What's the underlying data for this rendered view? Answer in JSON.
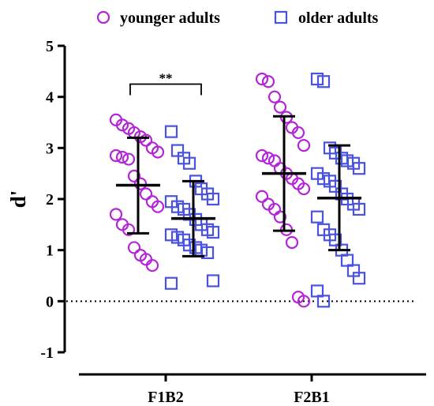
{
  "chart_data": {
    "type": "scatter",
    "title": "",
    "xlabel": "",
    "ylabel": "d'",
    "ylim": [
      -1,
      5
    ],
    "yticks": [
      -1,
      0,
      1,
      2,
      3,
      4,
      5
    ],
    "grid": false,
    "legend_position": "top",
    "reference_line": {
      "y": 0,
      "style": "dotted"
    },
    "categories": [
      "F1B2",
      "F2B1"
    ],
    "series": [
      {
        "name": "younger adults",
        "marker": "circle",
        "color": "#b325d6",
        "points": {
          "F1B2": [
            3.55,
            3.45,
            3.38,
            3.3,
            3.22,
            3.15,
            3.0,
            2.92,
            2.85,
            2.82,
            2.78,
            2.45,
            2.3,
            2.1,
            1.95,
            1.85,
            1.7,
            1.5,
            1.4,
            1.05,
            0.9,
            0.82,
            0.7
          ],
          "F2B1": [
            4.35,
            4.3,
            4.0,
            3.8,
            3.6,
            3.4,
            3.3,
            3.05,
            2.85,
            2.8,
            2.75,
            2.6,
            2.5,
            2.4,
            2.3,
            2.2,
            2.05,
            1.9,
            1.8,
            1.65,
            1.4,
            1.15,
            0.08,
            0.0
          ]
        },
        "mean": {
          "F1B2": 2.27,
          "F2B1": 2.5
        },
        "sd_bar": {
          "F1B2": [
            1.33,
            3.2
          ],
          "F2B1": [
            1.38,
            3.62
          ]
        }
      },
      {
        "name": "older adults",
        "marker": "square",
        "color": "#4a52e0",
        "points": {
          "F1B2": [
            3.32,
            2.95,
            2.8,
            2.7,
            2.35,
            2.2,
            2.1,
            2.0,
            1.95,
            1.85,
            1.8,
            1.7,
            1.6,
            1.5,
            1.4,
            1.35,
            1.3,
            1.25,
            1.2,
            1.1,
            1.05,
            1.0,
            0.95,
            0.4,
            0.35
          ],
          "F2B1": [
            4.35,
            4.3,
            3.0,
            2.9,
            2.8,
            2.75,
            2.7,
            2.6,
            2.5,
            2.4,
            2.35,
            2.25,
            2.1,
            2.0,
            1.9,
            1.8,
            1.65,
            1.4,
            1.3,
            1.2,
            1.0,
            0.8,
            0.6,
            0.45,
            0.2,
            0.0
          ]
        },
        "mean": {
          "F1B2": 1.62,
          "F2B1": 2.02
        },
        "sd_bar": {
          "F1B2": [
            0.88,
            2.35
          ],
          "F2B1": [
            1.0,
            3.05
          ]
        }
      }
    ],
    "annotations": [
      {
        "text": "**",
        "type": "significance_bracket",
        "between": [
          "F1B2 younger adults",
          "F1B2 older adults"
        ],
        "y": 4.25
      }
    ]
  }
}
